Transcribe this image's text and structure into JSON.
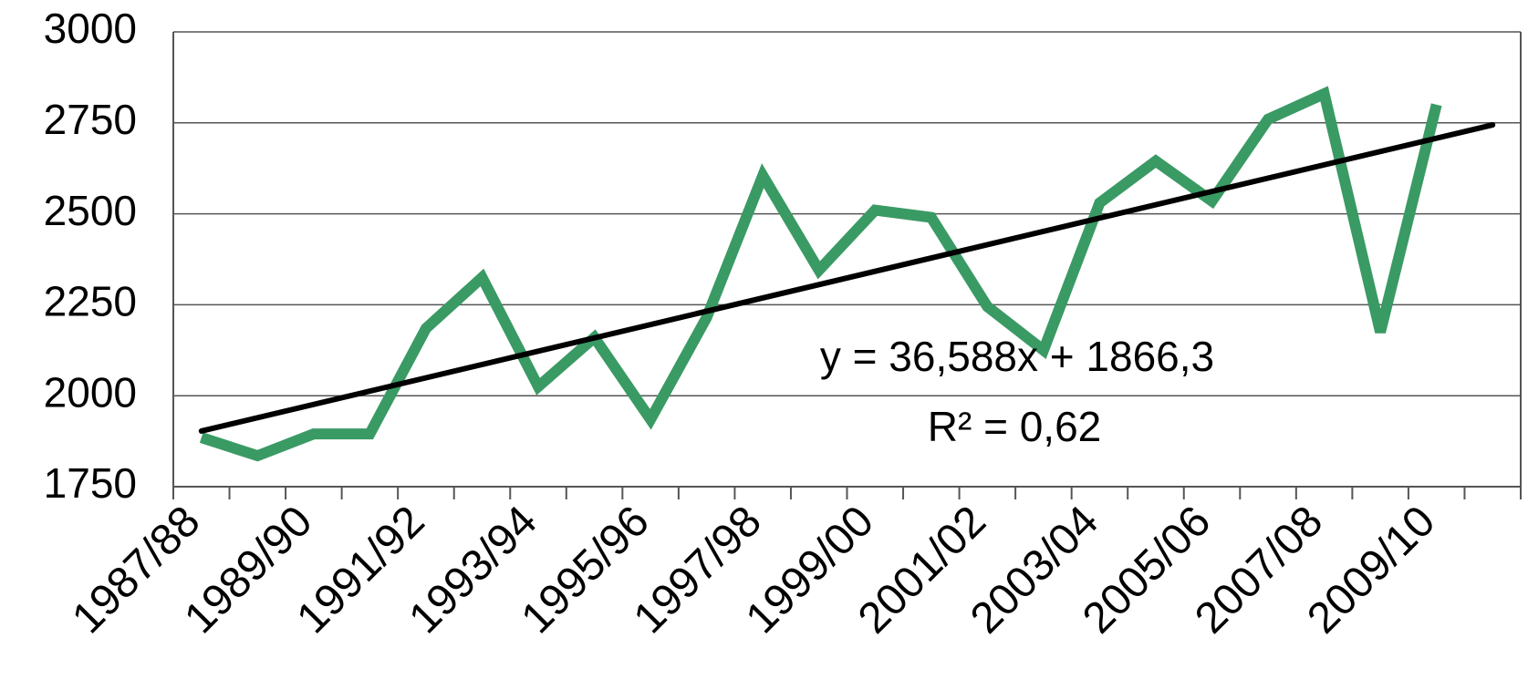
{
  "chart_data": {
    "type": "line",
    "categories": [
      "1987/88",
      null,
      "1989/90",
      null,
      "1991/92",
      null,
      "1993/94",
      null,
      "1995/96",
      null,
      "1997/98",
      null,
      "1999/00",
      null,
      "2001/02",
      null,
      "2003/04",
      null,
      "2005/06",
      null,
      "2007/08",
      null,
      "2009/10",
      null
    ],
    "series": [
      {
        "color": "#3a9a64",
        "values": [
          1885,
          1835,
          1895,
          1895,
          2185,
          2325,
          2025,
          2160,
          1935,
          2215,
          2605,
          2345,
          2510,
          2490,
          2245,
          2125,
          2530,
          2645,
          2535,
          2760,
          2830,
          2175,
          2800,
          null
        ]
      }
    ],
    "trendline": {
      "slope": 36.588,
      "intercept": 1866.3,
      "color": "#000000",
      "equation": "y = 36,588x + 1866,3",
      "r_squared": "R² = 0,62"
    },
    "ylim": [
      1750,
      3000
    ],
    "yticks": [
      1750,
      2000,
      2250,
      2500,
      2750,
      3000
    ],
    "grid": true
  }
}
